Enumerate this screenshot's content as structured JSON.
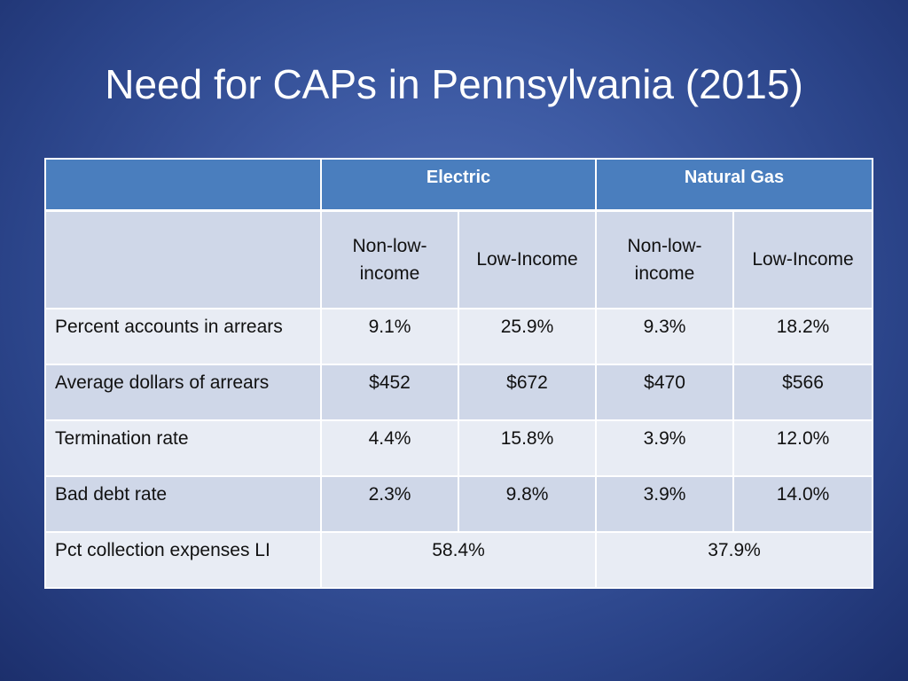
{
  "slide": {
    "title": "Need for CAPs in Pennsylvania (2015)"
  },
  "table": {
    "group_headers": [
      "Electric",
      "Natural Gas"
    ],
    "sub_headers": [
      "Non-low-\nincome",
      "Low-Income",
      "Non-low-\nincome",
      "Low-Income"
    ],
    "rows": [
      {
        "label": "Percent accounts in arrears",
        "values": [
          "9.1%",
          "25.9%",
          "9.3%",
          "18.2%"
        ]
      },
      {
        "label": "Average dollars of arrears",
        "values": [
          "$452",
          "$672",
          "$470",
          "$566"
        ]
      },
      {
        "label": "Termination rate",
        "values": [
          "4.4%",
          "15.8%",
          "3.9%",
          "12.0%"
        ]
      },
      {
        "label": "Bad debt rate",
        "values": [
          "2.3%",
          "9.8%",
          "3.9%",
          "14.0%"
        ]
      }
    ],
    "summary_row": {
      "label": "Pct collection expenses LI",
      "values": [
        "58.4%",
        "37.9%"
      ]
    }
  },
  "colors": {
    "header_blue": "#4a7ebe",
    "band_dark": "#cfd7e8",
    "band_light": "#e8ecf4",
    "background": "#3d5aa3"
  }
}
